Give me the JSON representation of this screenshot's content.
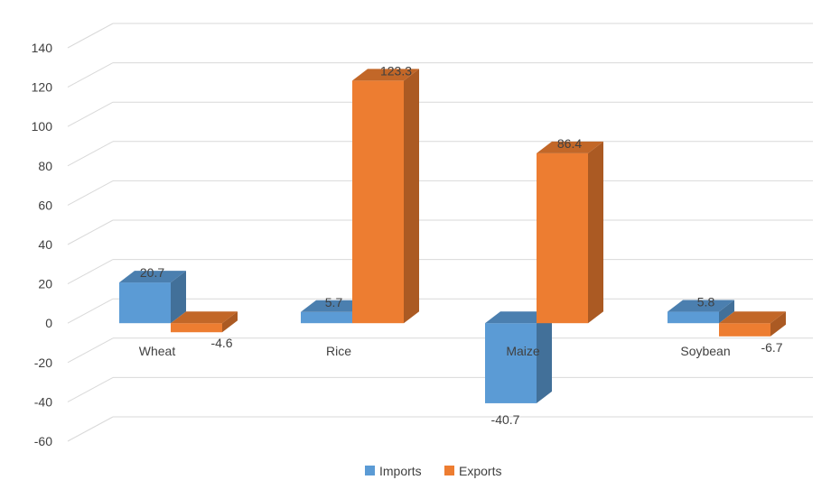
{
  "chart_data": {
    "type": "bar",
    "categories": [
      "Wheat",
      "Rice",
      "Maize",
      "Soybean"
    ],
    "series": [
      {
        "name": "Imports",
        "values": [
          20.7,
          5.7,
          -40.7,
          5.8
        ],
        "color": "#5b9bd5"
      },
      {
        "name": "Exports",
        "values": [
          -4.6,
          123.3,
          86.4,
          -6.7
        ],
        "color": "#ed7d31"
      }
    ],
    "ylim": [
      -60,
      140
    ],
    "yticks": [
      -60,
      -40,
      -20,
      0,
      20,
      40,
      60,
      80,
      100,
      120,
      140
    ],
    "title": "",
    "xlabel": "",
    "ylabel": "",
    "grid": true,
    "legend_position": "bottom",
    "three_d": true
  }
}
